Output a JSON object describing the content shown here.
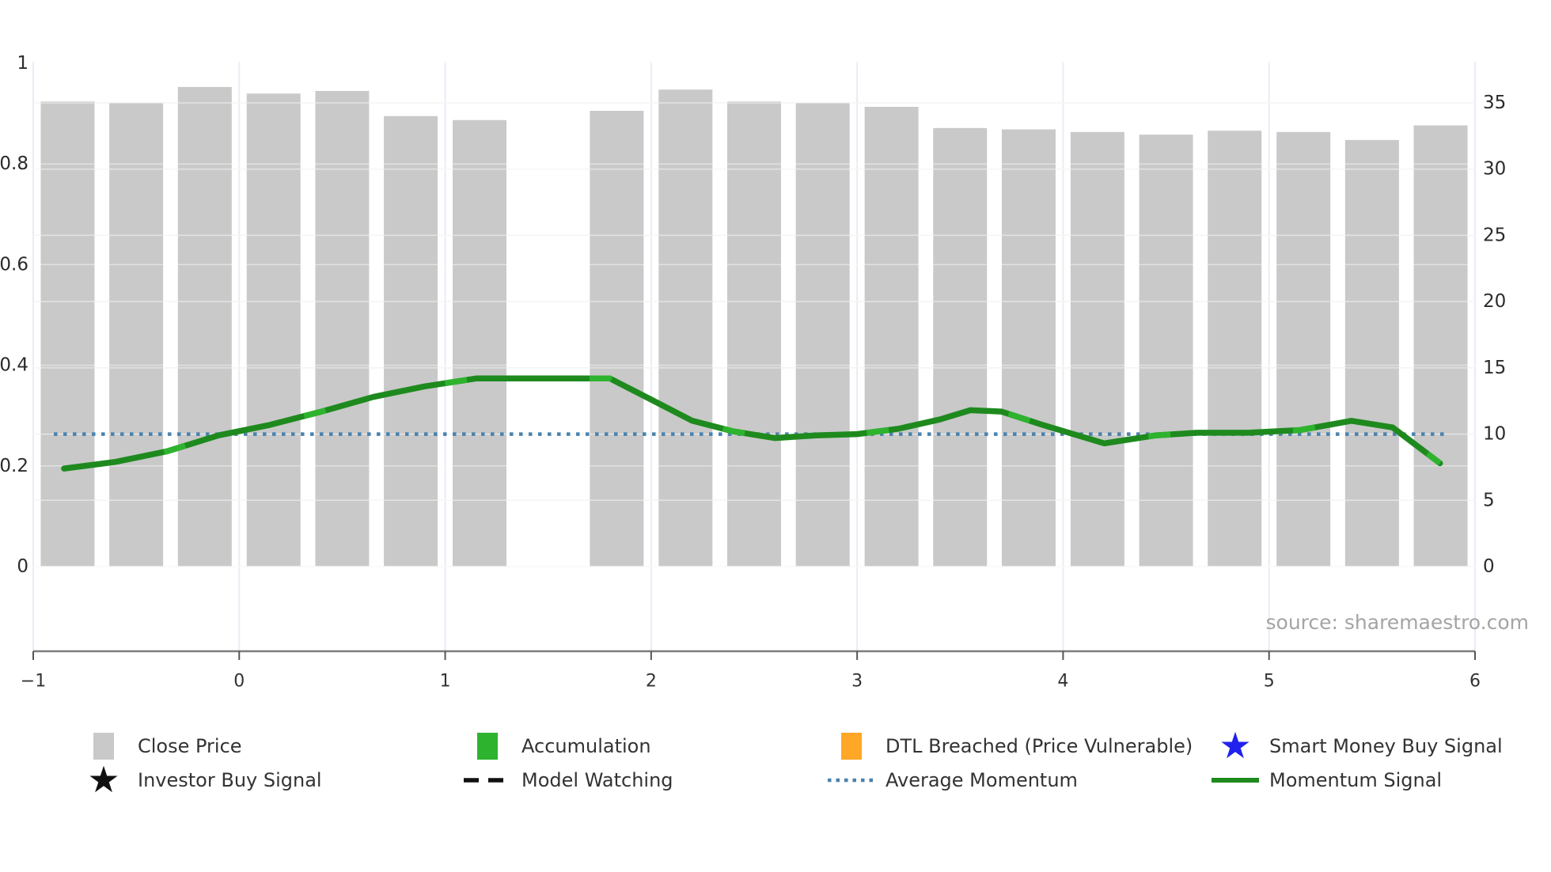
{
  "source_credit": "source: sharemaestro.com",
  "legend": {
    "items": [
      {
        "label": "Close Price",
        "marker": "gray-square"
      },
      {
        "label": "Accumulation",
        "marker": "green-square"
      },
      {
        "label": "DTL Breached (Price Vulnerable)",
        "marker": "orange-square"
      },
      {
        "label": "Smart Money Buy Signal",
        "marker": "blue-star"
      },
      {
        "label": "Investor Buy Signal",
        "marker": "black-star"
      },
      {
        "label": "Model Watching",
        "marker": "black-dashed-line"
      },
      {
        "label": "Average Momentum",
        "marker": "blue-dotted-line"
      },
      {
        "label": "Momentum Signal",
        "marker": "green-solid-line"
      }
    ]
  },
  "colors": {
    "bar": "#c9c9c9",
    "momentum": "#1e8a1e",
    "accumulation_patch": "#2eb32e",
    "avg_momentum": "#4a82ad",
    "dtl_orange": "#ffa726",
    "smart_money_blue": "#2121ee",
    "signal_black": "#111111",
    "text": "#333333",
    "muted_text": "#a4a4a4",
    "axis": "#7d7d7d",
    "grid_v": "#e8ecf6",
    "grid_h": "#ededed"
  },
  "chart_data": {
    "type": "bar",
    "series": [
      {
        "name": "Close Price",
        "type": "bar",
        "yaxis": "right",
        "x": [
          -0.833,
          -0.5,
          -0.167,
          0.167,
          0.5,
          0.833,
          1.167,
          1.833,
          2.167,
          2.5,
          2.833,
          3.167,
          3.5,
          3.833,
          4.167,
          4.5,
          4.833,
          5.167,
          5.5,
          5.833
        ],
        "values": [
          35.1,
          35.0,
          36.2,
          35.7,
          35.9,
          34.0,
          33.7,
          34.4,
          36.0,
          35.1,
          35.0,
          34.7,
          33.1,
          33.0,
          32.8,
          32.6,
          32.9,
          32.8,
          32.2,
          33.3
        ]
      },
      {
        "name": "Momentum Signal",
        "type": "line",
        "yaxis": "right",
        "points": [
          [
            -0.85,
            7.4
          ],
          [
            -0.6,
            7.9
          ],
          [
            -0.35,
            8.7
          ],
          [
            -0.1,
            9.9
          ],
          [
            0.15,
            10.7
          ],
          [
            0.4,
            11.7
          ],
          [
            0.65,
            12.8
          ],
          [
            0.9,
            13.6
          ],
          [
            1.15,
            14.2
          ],
          [
            1.8,
            14.2
          ],
          [
            2.0,
            12.6
          ],
          [
            2.2,
            11.0
          ],
          [
            2.4,
            10.2
          ],
          [
            2.6,
            9.7
          ],
          [
            2.8,
            9.9
          ],
          [
            3.0,
            10.0
          ],
          [
            3.2,
            10.4
          ],
          [
            3.4,
            11.1
          ],
          [
            3.55,
            11.8
          ],
          [
            3.7,
            11.7
          ],
          [
            3.9,
            10.7
          ],
          [
            4.2,
            9.3
          ],
          [
            4.45,
            9.9
          ],
          [
            4.65,
            10.1
          ],
          [
            4.9,
            10.1
          ],
          [
            5.15,
            10.3
          ],
          [
            5.4,
            11.0
          ],
          [
            5.6,
            10.5
          ],
          [
            5.83,
            7.8
          ]
        ]
      },
      {
        "name": "Average Momentum",
        "type": "hline-dotted",
        "yaxis": "right",
        "value": 10.0,
        "x_span": [
          -0.9,
          5.85
        ]
      }
    ],
    "missing_bar_slot_x": 1.5,
    "x_axis": {
      "range": [
        -1,
        6
      ],
      "ticks": [
        {
          "v": -1,
          "label": "−1"
        },
        {
          "v": 0,
          "label": "0"
        },
        {
          "v": 1,
          "label": "1"
        },
        {
          "v": 2,
          "label": "2"
        },
        {
          "v": 3,
          "label": "3"
        },
        {
          "v": 4,
          "label": "4"
        },
        {
          "v": 5,
          "label": "5"
        },
        {
          "v": 6,
          "label": "6"
        }
      ]
    },
    "left_axis": {
      "ticks": [
        {
          "v": 0,
          "label": "0"
        },
        {
          "v": 0.2,
          "label": "0.2"
        },
        {
          "v": 0.4,
          "label": "0.4"
        },
        {
          "v": 0.6,
          "label": "0.6"
        },
        {
          "v": 0.8,
          "label": "0.8"
        },
        {
          "v": 1,
          "label": "1"
        }
      ]
    },
    "right_axis": {
      "ticks": [
        {
          "v": 0,
          "label": "0"
        },
        {
          "v": 5,
          "label": "5"
        },
        {
          "v": 10,
          "label": "10"
        },
        {
          "v": 15,
          "label": "15"
        },
        {
          "v": 20,
          "label": "20"
        },
        {
          "v": 25,
          "label": "25"
        },
        {
          "v": 30,
          "label": "30"
        },
        {
          "v": 35,
          "label": "35"
        }
      ]
    },
    "grid": true,
    "legend_position": "bottom",
    "title": "",
    "xlabel": "",
    "ylabel": ""
  }
}
